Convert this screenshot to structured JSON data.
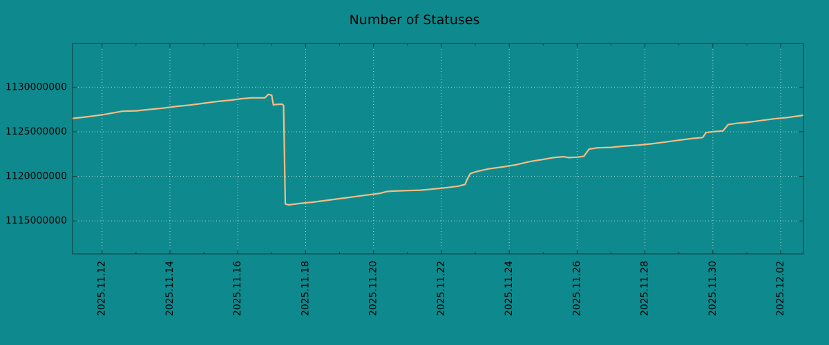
{
  "chart_data": {
    "type": "line",
    "title": "Number of Statuses",
    "xlabel": "",
    "ylabel": "",
    "legend": false,
    "grid": true,
    "x_unit": "days since 2025-11-11 00:00",
    "xlim": [
      0.13,
      21.67
    ],
    "ylim": [
      1111300000,
      1134900000
    ],
    "x_ticks": [
      {
        "t": 1,
        "label": "2025.11.12"
      },
      {
        "t": 3,
        "label": "2025.11.14"
      },
      {
        "t": 5,
        "label": "2025.11.16"
      },
      {
        "t": 7,
        "label": "2025.11.18"
      },
      {
        "t": 9,
        "label": "2025.11.20"
      },
      {
        "t": 11,
        "label": "2025.11.22"
      },
      {
        "t": 13,
        "label": "2025.11.24"
      },
      {
        "t": 15,
        "label": "2025.11.26"
      },
      {
        "t": 17,
        "label": "2025.11.28"
      },
      {
        "t": 19,
        "label": "2025.11.30"
      },
      {
        "t": 21,
        "label": "2025.12.02"
      }
    ],
    "y_ticks": [
      {
        "v": 1115000000,
        "label": "1115000000"
      },
      {
        "v": 1120000000,
        "label": "1120000000"
      },
      {
        "v": 1125000000,
        "label": "1125000000"
      },
      {
        "v": 1130000000,
        "label": "1130000000"
      }
    ],
    "colors": {
      "background": "#0e8a8e",
      "line": "#f6bd85",
      "grid": "#ffffff",
      "text": "#000000",
      "border": "#123a3c"
    },
    "series": [
      {
        "name": "statuses",
        "points": [
          [
            0.13,
            1126500000
          ],
          [
            0.5,
            1126650000
          ],
          [
            0.8,
            1126800000
          ],
          [
            1.0,
            1126900000
          ],
          [
            1.3,
            1127100000
          ],
          [
            1.6,
            1127300000
          ],
          [
            2.0,
            1127350000
          ],
          [
            2.4,
            1127500000
          ],
          [
            2.8,
            1127650000
          ],
          [
            3.2,
            1127850000
          ],
          [
            3.6,
            1128000000
          ],
          [
            4.0,
            1128200000
          ],
          [
            4.4,
            1128400000
          ],
          [
            4.8,
            1128550000
          ],
          [
            5.1,
            1128700000
          ],
          [
            5.4,
            1128800000
          ],
          [
            5.8,
            1128800000
          ],
          [
            5.9,
            1129200000
          ],
          [
            6.0,
            1129100000
          ],
          [
            6.05,
            1128000000
          ],
          [
            6.1,
            1128050000
          ],
          [
            6.3,
            1128100000
          ],
          [
            6.35,
            1127950000
          ],
          [
            6.4,
            1116900000
          ],
          [
            6.5,
            1116800000
          ],
          [
            6.8,
            1116950000
          ],
          [
            7.2,
            1117100000
          ],
          [
            7.6,
            1117300000
          ],
          [
            8.0,
            1117500000
          ],
          [
            8.4,
            1117700000
          ],
          [
            8.8,
            1117900000
          ],
          [
            9.2,
            1118100000
          ],
          [
            9.4,
            1118300000
          ],
          [
            9.6,
            1118350000
          ],
          [
            10.0,
            1118400000
          ],
          [
            10.4,
            1118450000
          ],
          [
            10.8,
            1118600000
          ],
          [
            11.2,
            1118750000
          ],
          [
            11.5,
            1118900000
          ],
          [
            11.7,
            1119100000
          ],
          [
            11.75,
            1119600000
          ],
          [
            11.85,
            1120300000
          ],
          [
            12.0,
            1120500000
          ],
          [
            12.4,
            1120850000
          ],
          [
            12.8,
            1121050000
          ],
          [
            13.2,
            1121300000
          ],
          [
            13.6,
            1121650000
          ],
          [
            14.0,
            1121900000
          ],
          [
            14.3,
            1122100000
          ],
          [
            14.6,
            1122200000
          ],
          [
            14.75,
            1122100000
          ],
          [
            15.0,
            1122150000
          ],
          [
            15.2,
            1122250000
          ],
          [
            15.35,
            1123050000
          ],
          [
            15.6,
            1123200000
          ],
          [
            16.0,
            1123250000
          ],
          [
            16.4,
            1123400000
          ],
          [
            16.8,
            1123500000
          ],
          [
            17.2,
            1123650000
          ],
          [
            17.6,
            1123850000
          ],
          [
            18.0,
            1124050000
          ],
          [
            18.4,
            1124250000
          ],
          [
            18.7,
            1124350000
          ],
          [
            18.8,
            1124900000
          ],
          [
            19.0,
            1125000000
          ],
          [
            19.3,
            1125100000
          ],
          [
            19.45,
            1125800000
          ],
          [
            19.7,
            1125950000
          ],
          [
            20.0,
            1126050000
          ],
          [
            20.4,
            1126250000
          ],
          [
            20.8,
            1126450000
          ],
          [
            21.2,
            1126600000
          ],
          [
            21.67,
            1126850000
          ]
        ]
      }
    ]
  }
}
